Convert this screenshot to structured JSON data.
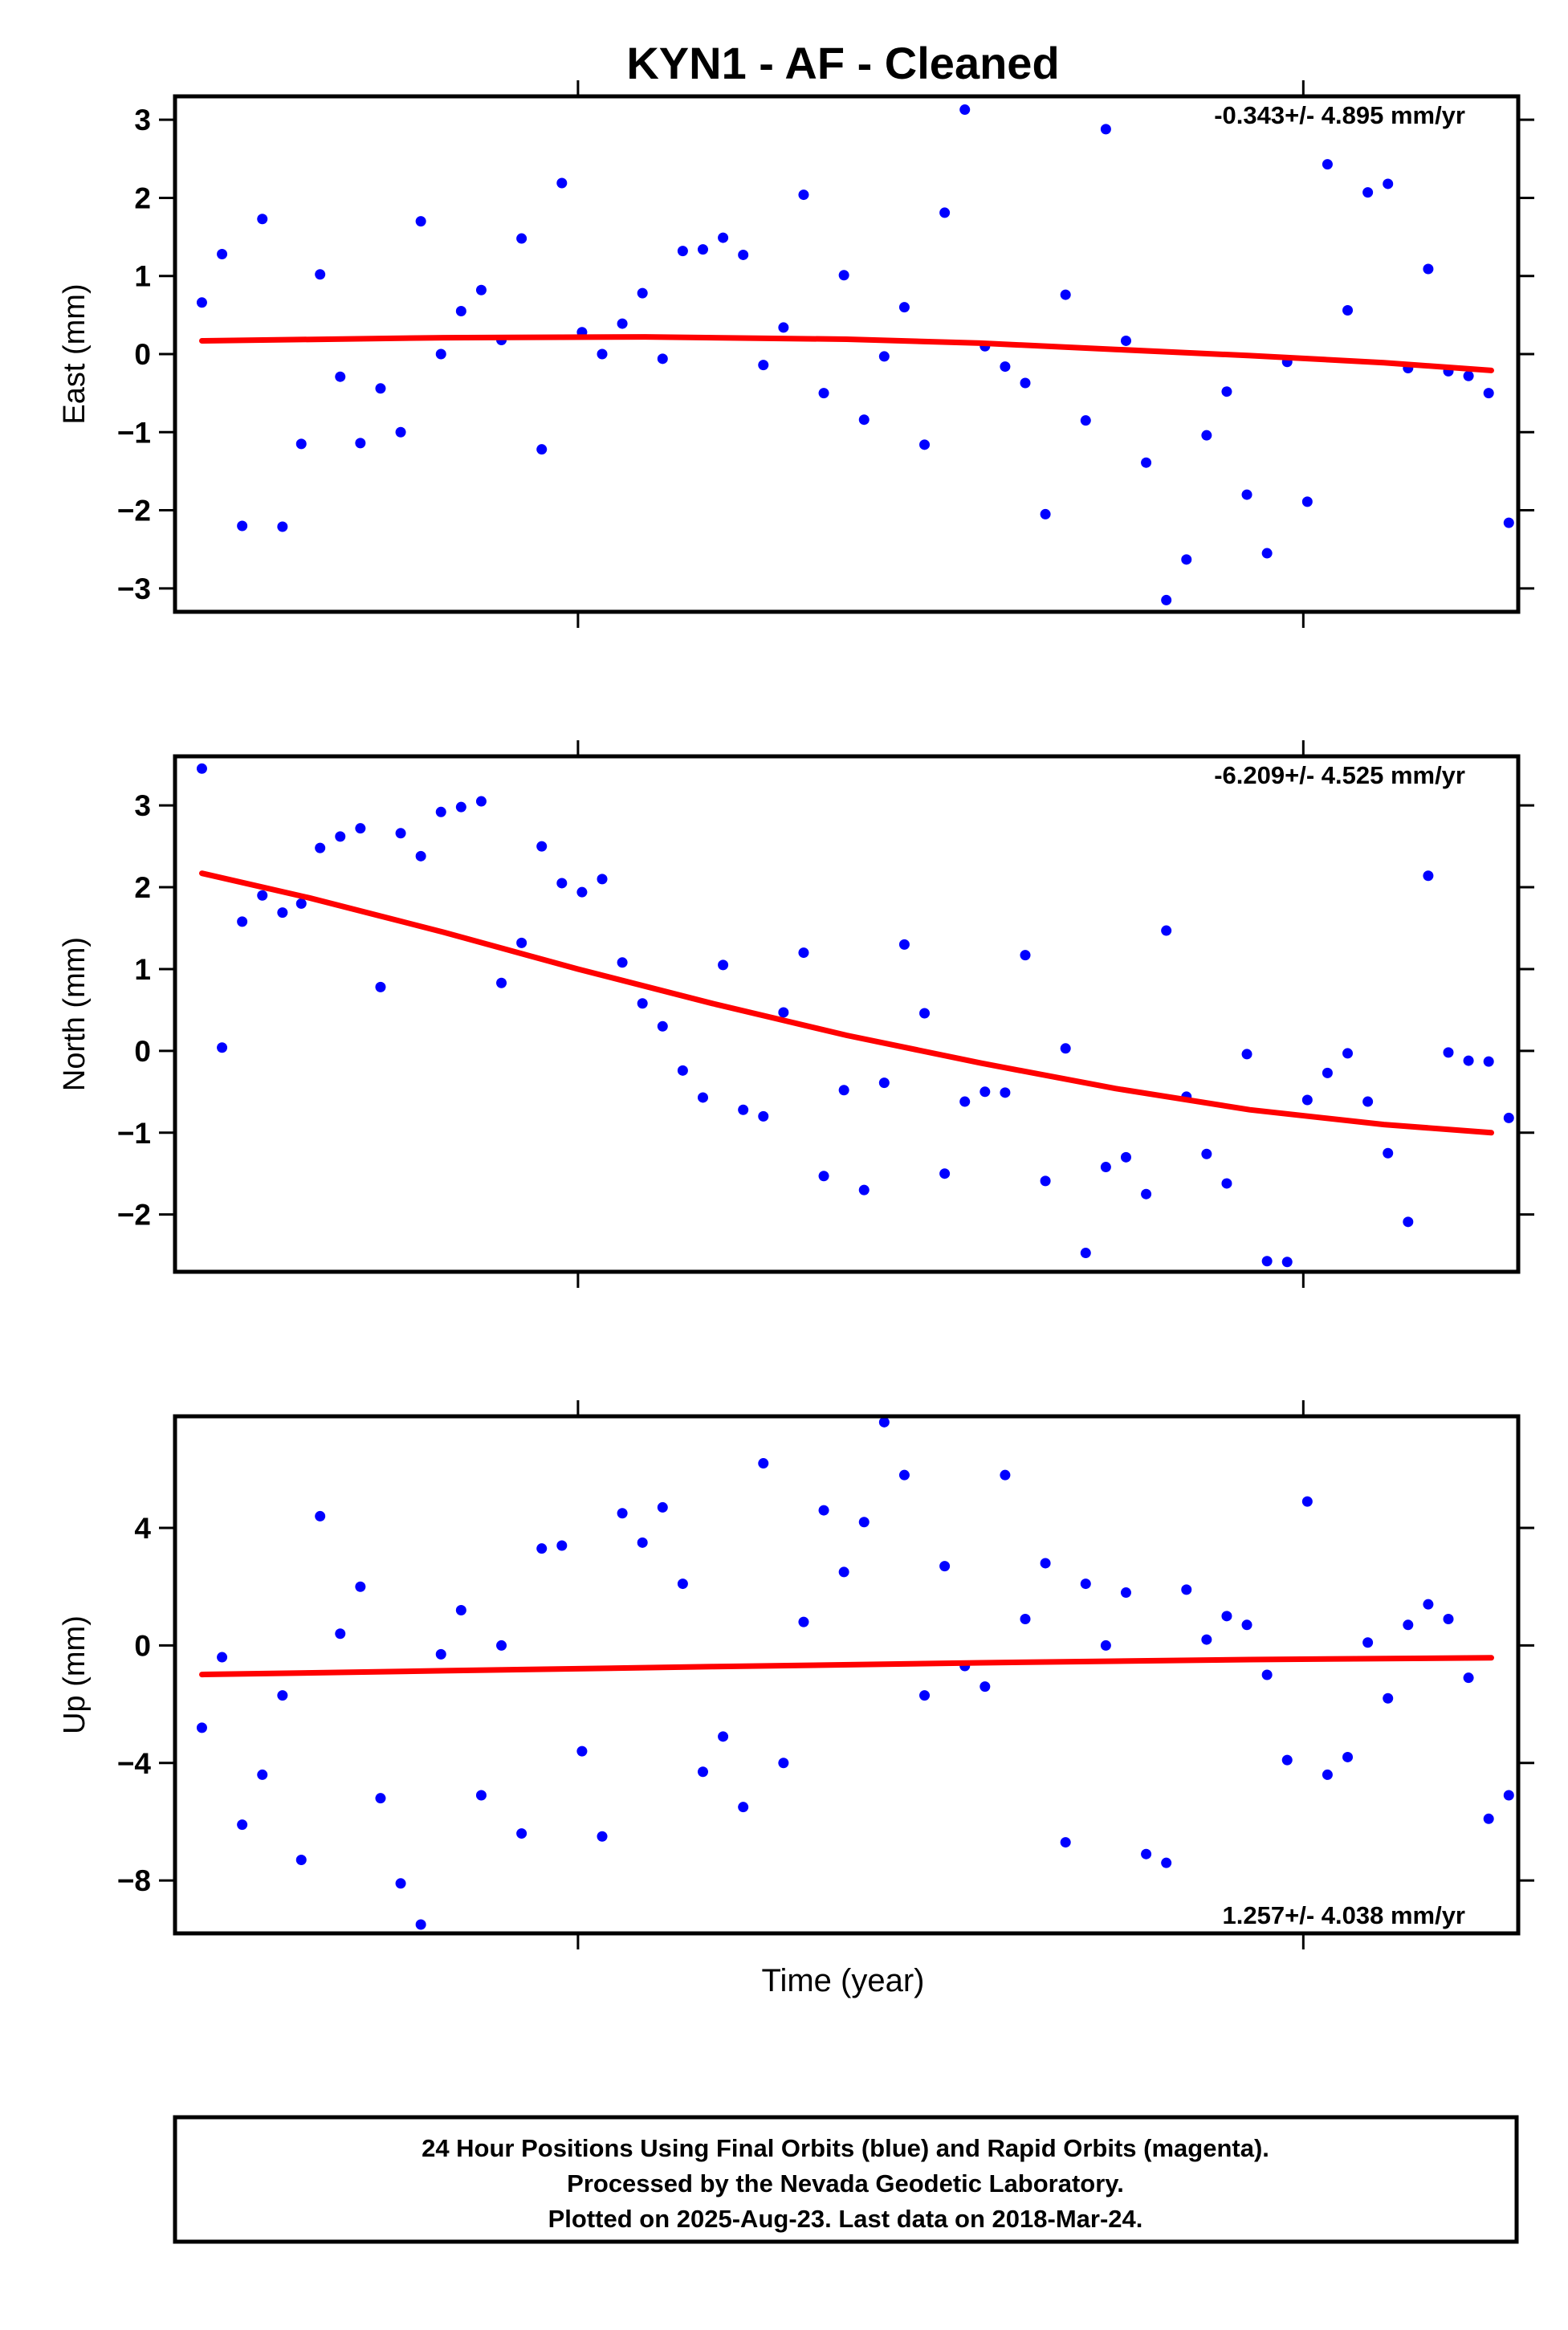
{
  "title": "KYN1  - AF - Cleaned",
  "xlabel": "Time (year)",
  "colors": {
    "points": "#0000ff",
    "fit": "#ff0000",
    "frame": "#000000"
  },
  "footer": {
    "lines": [
      "24 Hour Positions Using Final Orbits (blue) and Rapid Orbits (magenta).",
      "Processed by the Nevada Geodetic Laboratory.",
      "Plotted on 2025-Aug-23. Last data on 2018-Mar-24."
    ]
  },
  "chart_data": [
    {
      "type": "scatter",
      "panel": "east",
      "ylabel": "East (mm)",
      "rate": "-0.343+/- 4.895 mm/yr",
      "rate_position": "top-right",
      "ylim": [
        -3.3,
        3.3
      ],
      "yticks": [
        -3,
        -2,
        -1,
        0,
        1,
        2,
        3
      ],
      "ytick_labels": [
        "−3",
        "−2",
        "−1",
        "0",
        "1",
        "2",
        "3"
      ],
      "xlim": [
        0,
        1
      ],
      "xticks": [
        0.3,
        0.84
      ],
      "fit": [
        [
          0.02,
          0.17
        ],
        [
          0.2,
          0.21
        ],
        [
          0.35,
          0.22
        ],
        [
          0.5,
          0.19
        ],
        [
          0.6,
          0.14
        ],
        [
          0.7,
          0.06
        ],
        [
          0.8,
          -0.02
        ],
        [
          0.9,
          -0.11
        ],
        [
          0.98,
          -0.21
        ]
      ],
      "points": [
        [
          0.02,
          0.66
        ],
        [
          0.035,
          1.28
        ],
        [
          0.05,
          -2.2
        ],
        [
          0.065,
          1.73
        ],
        [
          0.08,
          -2.21
        ],
        [
          0.094,
          -1.15
        ],
        [
          0.108,
          1.02
        ],
        [
          0.123,
          -0.29
        ],
        [
          0.138,
          -1.14
        ],
        [
          0.153,
          -0.44
        ],
        [
          0.168,
          -1.0
        ],
        [
          0.183,
          1.7
        ],
        [
          0.198,
          0.0
        ],
        [
          0.213,
          0.55
        ],
        [
          0.228,
          0.82
        ],
        [
          0.243,
          0.18
        ],
        [
          0.258,
          1.48
        ],
        [
          0.273,
          -1.22
        ],
        [
          0.288,
          2.19
        ],
        [
          0.303,
          0.28
        ],
        [
          0.318,
          0.0
        ],
        [
          0.333,
          0.39
        ],
        [
          0.348,
          0.78
        ],
        [
          0.363,
          -0.06
        ],
        [
          0.378,
          1.32
        ],
        [
          0.393,
          1.34
        ],
        [
          0.408,
          1.49
        ],
        [
          0.423,
          1.27
        ],
        [
          0.438,
          -0.14
        ],
        [
          0.453,
          0.34
        ],
        [
          0.468,
          2.04
        ],
        [
          0.483,
          -0.5
        ],
        [
          0.498,
          1.01
        ],
        [
          0.513,
          -0.84
        ],
        [
          0.528,
          -0.03
        ],
        [
          0.543,
          0.6
        ],
        [
          0.558,
          -1.16
        ],
        [
          0.573,
          1.81
        ],
        [
          0.588,
          3.13
        ],
        [
          0.603,
          0.1
        ],
        [
          0.618,
          -0.16
        ],
        [
          0.633,
          -0.37
        ],
        [
          0.648,
          -2.05
        ],
        [
          0.663,
          0.76
        ],
        [
          0.678,
          -0.85
        ],
        [
          0.693,
          2.88
        ],
        [
          0.708,
          0.17
        ],
        [
          0.723,
          -1.39
        ],
        [
          0.738,
          -3.15
        ],
        [
          0.753,
          -2.63
        ],
        [
          0.768,
          -1.04
        ],
        [
          0.783,
          -0.48
        ],
        [
          0.798,
          -1.8
        ],
        [
          0.813,
          -2.55
        ],
        [
          0.828,
          -0.1
        ],
        [
          0.843,
          -1.89
        ],
        [
          0.858,
          2.43
        ],
        [
          0.873,
          0.56
        ],
        [
          0.888,
          2.07
        ],
        [
          0.903,
          2.18
        ],
        [
          0.918,
          -0.18
        ],
        [
          0.933,
          1.09
        ],
        [
          0.948,
          -0.22
        ],
        [
          0.963,
          -0.28
        ],
        [
          0.978,
          -0.5
        ],
        [
          0.993,
          -2.16
        ]
      ]
    },
    {
      "type": "scatter",
      "panel": "north",
      "ylabel": "North (mm)",
      "rate": "-6.209+/- 4.525 mm/yr",
      "rate_position": "top-right",
      "ylim": [
        -2.7,
        3.6
      ],
      "yticks": [
        -2,
        -1,
        0,
        1,
        2,
        3
      ],
      "ytick_labels": [
        "−2",
        "−1",
        "0",
        "1",
        "2",
        "3"
      ],
      "xlim": [
        0,
        1
      ],
      "xticks": [
        0.3,
        0.84
      ],
      "fit": [
        [
          0.02,
          2.17
        ],
        [
          0.1,
          1.87
        ],
        [
          0.2,
          1.45
        ],
        [
          0.3,
          1.0
        ],
        [
          0.4,
          0.58
        ],
        [
          0.5,
          0.19
        ],
        [
          0.6,
          -0.15
        ],
        [
          0.7,
          -0.46
        ],
        [
          0.8,
          -0.72
        ],
        [
          0.9,
          -0.9
        ],
        [
          0.98,
          -1.0
        ]
      ],
      "points": [
        [
          0.02,
          3.45
        ],
        [
          0.035,
          0.04
        ],
        [
          0.05,
          1.58
        ],
        [
          0.065,
          1.9
        ],
        [
          0.08,
          1.69
        ],
        [
          0.094,
          1.8
        ],
        [
          0.108,
          2.48
        ],
        [
          0.123,
          2.62
        ],
        [
          0.138,
          2.72
        ],
        [
          0.153,
          0.78
        ],
        [
          0.168,
          2.66
        ],
        [
          0.183,
          2.38
        ],
        [
          0.198,
          2.92
        ],
        [
          0.213,
          2.98
        ],
        [
          0.228,
          3.05
        ],
        [
          0.243,
          0.83
        ],
        [
          0.258,
          1.32
        ],
        [
          0.273,
          2.5
        ],
        [
          0.288,
          2.05
        ],
        [
          0.303,
          1.94
        ],
        [
          0.318,
          2.1
        ],
        [
          0.333,
          1.08
        ],
        [
          0.348,
          0.58
        ],
        [
          0.363,
          0.3
        ],
        [
          0.378,
          -0.24
        ],
        [
          0.393,
          -0.57
        ],
        [
          0.408,
          1.05
        ],
        [
          0.423,
          -0.72
        ],
        [
          0.438,
          -0.8
        ],
        [
          0.453,
          0.47
        ],
        [
          0.468,
          1.2
        ],
        [
          0.483,
          -1.53
        ],
        [
          0.498,
          -0.48
        ],
        [
          0.513,
          -1.7
        ],
        [
          0.528,
          -0.39
        ],
        [
          0.543,
          1.3
        ],
        [
          0.558,
          0.46
        ],
        [
          0.573,
          -1.5
        ],
        [
          0.588,
          -0.62
        ],
        [
          0.603,
          -0.5
        ],
        [
          0.618,
          -0.51
        ],
        [
          0.633,
          1.17
        ],
        [
          0.648,
          -1.59
        ],
        [
          0.663,
          0.03
        ],
        [
          0.678,
          -2.47
        ],
        [
          0.693,
          -1.42
        ],
        [
          0.708,
          -1.3
        ],
        [
          0.723,
          -1.75
        ],
        [
          0.738,
          1.47
        ],
        [
          0.753,
          -0.56
        ],
        [
          0.768,
          -1.26
        ],
        [
          0.783,
          -1.62
        ],
        [
          0.798,
          -0.04
        ],
        [
          0.813,
          -2.57
        ],
        [
          0.828,
          -2.58
        ],
        [
          0.843,
          -0.6
        ],
        [
          0.858,
          -0.27
        ],
        [
          0.873,
          -0.03
        ],
        [
          0.888,
          -0.62
        ],
        [
          0.903,
          -1.25
        ],
        [
          0.918,
          -2.09
        ],
        [
          0.933,
          2.14
        ],
        [
          0.948,
          -0.02
        ],
        [
          0.963,
          -0.12
        ],
        [
          0.978,
          -0.13
        ],
        [
          0.993,
          -0.82
        ]
      ]
    },
    {
      "type": "scatter",
      "panel": "up",
      "ylabel": "Up (mm)",
      "rate": "1.257+/- 4.038 mm/yr",
      "rate_position": "bottom-right",
      "ylim": [
        -9.8,
        7.8
      ],
      "yticks": [
        -8,
        -4,
        0,
        4
      ],
      "ytick_labels": [
        "−8",
        "−4",
        "0",
        "4"
      ],
      "xlim": [
        0,
        1
      ],
      "xticks": [
        0.3,
        0.84
      ],
      "fit": [
        [
          0.02,
          -0.99
        ],
        [
          0.2,
          -0.86
        ],
        [
          0.4,
          -0.72
        ],
        [
          0.6,
          -0.59
        ],
        [
          0.8,
          -0.48
        ],
        [
          0.98,
          -0.42
        ]
      ],
      "points": [
        [
          0.02,
          -2.8
        ],
        [
          0.035,
          -0.4
        ],
        [
          0.05,
          -6.1
        ],
        [
          0.065,
          -4.4
        ],
        [
          0.08,
          -1.7
        ],
        [
          0.094,
          -7.3
        ],
        [
          0.108,
          4.4
        ],
        [
          0.123,
          0.4
        ],
        [
          0.138,
          2.0
        ],
        [
          0.153,
          -5.2
        ],
        [
          0.168,
          -8.1
        ],
        [
          0.183,
          -9.5
        ],
        [
          0.198,
          -0.3
        ],
        [
          0.213,
          1.2
        ],
        [
          0.228,
          -5.1
        ],
        [
          0.243,
          0.0
        ],
        [
          0.258,
          -6.4
        ],
        [
          0.273,
          3.3
        ],
        [
          0.288,
          3.4
        ],
        [
          0.303,
          -3.6
        ],
        [
          0.318,
          -6.5
        ],
        [
          0.333,
          4.5
        ],
        [
          0.348,
          3.5
        ],
        [
          0.363,
          4.7
        ],
        [
          0.378,
          2.1
        ],
        [
          0.393,
          -4.3
        ],
        [
          0.408,
          -3.1
        ],
        [
          0.423,
          -5.5
        ],
        [
          0.438,
          6.2
        ],
        [
          0.453,
          -4.0
        ],
        [
          0.468,
          0.8
        ],
        [
          0.483,
          4.6
        ],
        [
          0.498,
          2.5
        ],
        [
          0.513,
          4.2
        ],
        [
          0.528,
          7.6
        ],
        [
          0.543,
          5.8
        ],
        [
          0.558,
          -1.7
        ],
        [
          0.573,
          2.7
        ],
        [
          0.588,
          -0.7
        ],
        [
          0.603,
          -1.4
        ],
        [
          0.618,
          5.8
        ],
        [
          0.633,
          0.9
        ],
        [
          0.648,
          2.8
        ],
        [
          0.663,
          -6.7
        ],
        [
          0.678,
          2.1
        ],
        [
          0.693,
          0.0
        ],
        [
          0.708,
          1.8
        ],
        [
          0.723,
          -7.1
        ],
        [
          0.738,
          -7.4
        ],
        [
          0.753,
          1.9
        ],
        [
          0.768,
          0.2
        ],
        [
          0.783,
          1.0
        ],
        [
          0.798,
          0.7
        ],
        [
          0.813,
          -1.0
        ],
        [
          0.828,
          -3.9
        ],
        [
          0.843,
          4.9
        ],
        [
          0.858,
          -4.4
        ],
        [
          0.873,
          -3.8
        ],
        [
          0.888,
          0.1
        ],
        [
          0.903,
          -1.8
        ],
        [
          0.918,
          0.7
        ],
        [
          0.933,
          1.4
        ],
        [
          0.948,
          0.9
        ],
        [
          0.963,
          -1.1
        ],
        [
          0.978,
          -5.9
        ],
        [
          0.993,
          -5.1
        ]
      ]
    }
  ]
}
